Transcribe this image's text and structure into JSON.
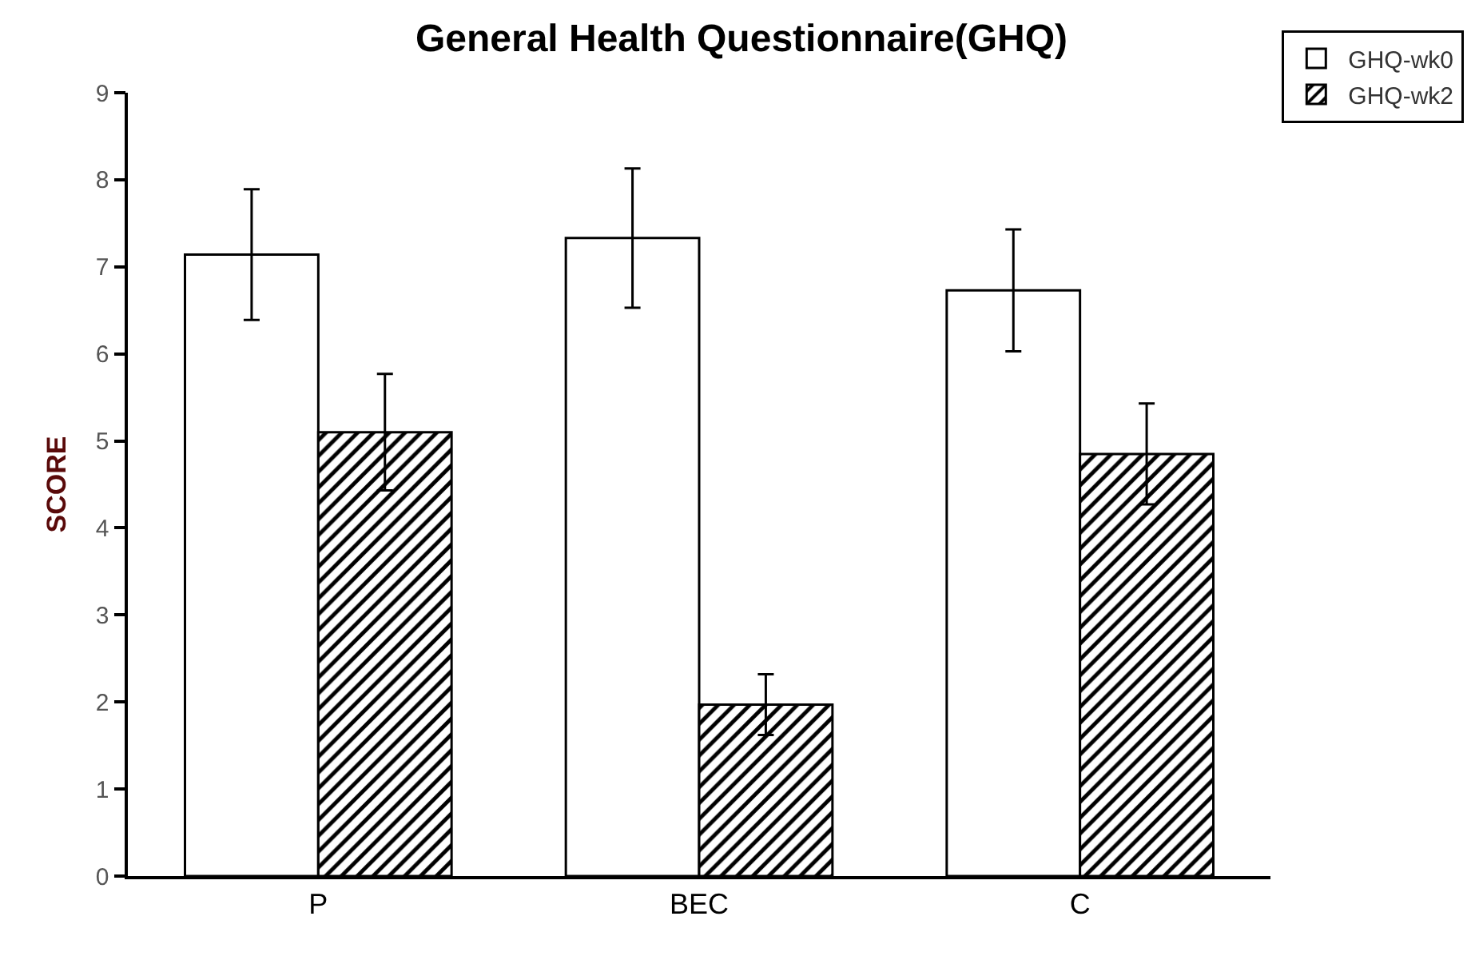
{
  "chart_data": {
    "type": "bar",
    "title": "General Health Questionnaire(GHQ)",
    "ylabel": "SCORE",
    "categories": [
      "P",
      "BEC",
      "C"
    ],
    "series": [
      {
        "name": "GHQ-wk0",
        "color": "#ffffff",
        "values": [
          7.14,
          7.33,
          6.73
        ],
        "errors": [
          0.75,
          0.8,
          0.7
        ]
      },
      {
        "name": "GHQ-wk2",
        "color": "#000000",
        "values": [
          5.1,
          1.97,
          4.85
        ],
        "errors": [
          0.67,
          0.35,
          0.58
        ]
      }
    ],
    "ylim": [
      0,
      9
    ],
    "yticks": [
      0,
      1,
      2,
      3,
      4,
      5,
      6,
      7,
      8,
      9
    ],
    "grid": false,
    "legend": "top right"
  }
}
